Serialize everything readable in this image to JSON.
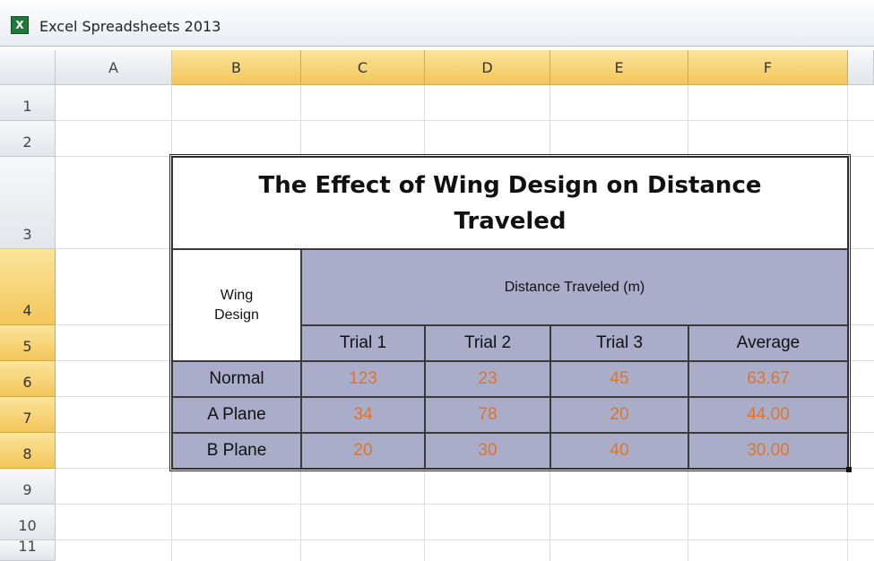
{
  "window": {
    "title": "Excel Spreadsheets 2013"
  },
  "columns": [
    "A",
    "B",
    "C",
    "D",
    "E",
    "F"
  ],
  "rows": [
    "1",
    "2",
    "3",
    "4",
    "5",
    "6",
    "7",
    "8",
    "9",
    "10",
    "11"
  ],
  "table": {
    "title": "The Effect of Wing Design on Distance Traveled",
    "row_header": "Wing Design",
    "group_header": "Distance Traveled (m)",
    "headers": [
      "Trial 1",
      "Trial 2",
      "Trial 3",
      "Average"
    ],
    "rows": [
      [
        "Normal",
        "123",
        "23",
        "45",
        "63.67"
      ],
      [
        "A Plane",
        "34",
        "78",
        "20",
        "44.00"
      ],
      [
        "B Plane",
        "20",
        "30",
        "40",
        "30.00"
      ]
    ]
  }
}
